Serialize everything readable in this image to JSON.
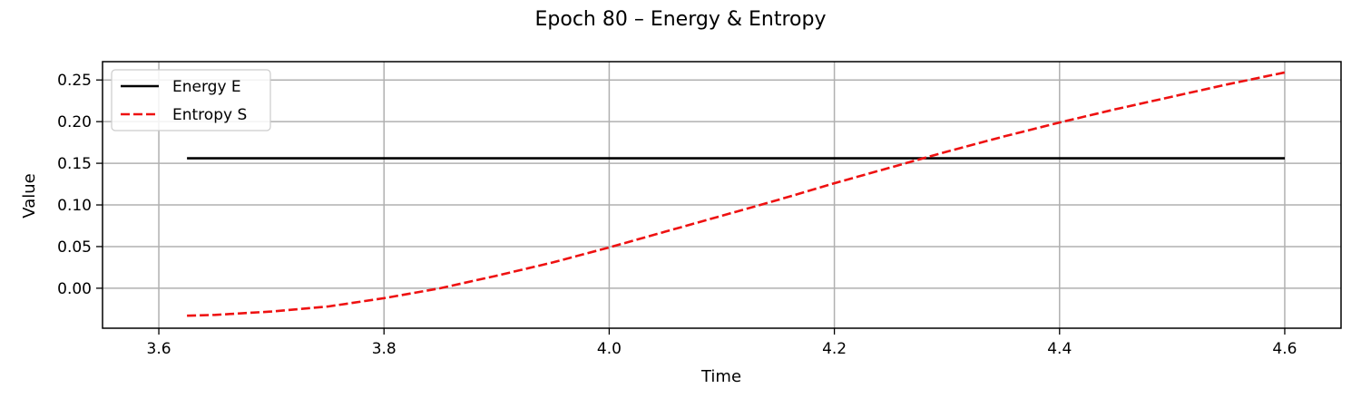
{
  "chart_data": {
    "type": "line",
    "title": "Epoch 80 – Energy & Entropy",
    "xlabel": "Time",
    "ylabel": "Value",
    "xlim": [
      3.55,
      4.65
    ],
    "ylim": [
      -0.048,
      0.272
    ],
    "x_ticks": [
      3.6,
      3.8,
      4.0,
      4.2,
      4.4,
      4.6
    ],
    "x_tick_labels": [
      "3.6",
      "3.8",
      "4.0",
      "4.2",
      "4.4",
      "4.6"
    ],
    "y_ticks": [
      0.0,
      0.05,
      0.1,
      0.15,
      0.2,
      0.25
    ],
    "y_tick_labels": [
      "0.00",
      "0.05",
      "0.10",
      "0.15",
      "0.20",
      "0.25"
    ],
    "grid": true,
    "legend_position": "top-left",
    "series": [
      {
        "name": "Energy E",
        "color": "#000000",
        "style": "solid",
        "x": [
          3.625,
          4.6
        ],
        "y": [
          0.156,
          0.156
        ]
      },
      {
        "name": "Entropy S",
        "color": "#ee1111",
        "style": "dashed",
        "x": [
          3.625,
          3.65,
          3.7,
          3.75,
          3.8,
          3.85,
          3.9,
          3.95,
          4.0,
          4.05,
          4.1,
          4.15,
          4.2,
          4.25,
          4.3,
          4.35,
          4.4,
          4.45,
          4.5,
          4.55,
          4.6
        ],
        "y": [
          -0.033,
          -0.032,
          -0.028,
          -0.022,
          -0.012,
          0.0,
          0.015,
          0.031,
          0.049,
          0.068,
          0.087,
          0.106,
          0.126,
          0.145,
          0.164,
          0.182,
          0.199,
          0.215,
          0.23,
          0.245,
          0.259
        ]
      }
    ]
  }
}
